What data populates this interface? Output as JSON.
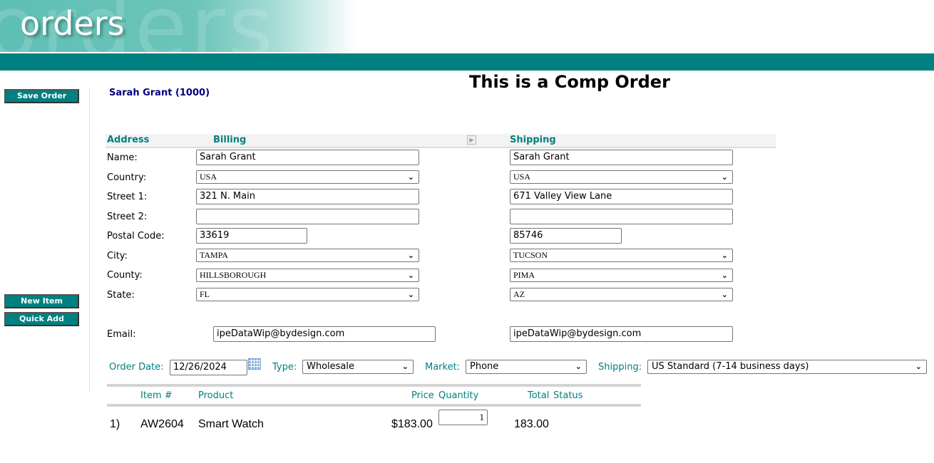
{
  "header": {
    "logo_text": "orders",
    "ghost_text": "orders"
  },
  "sidebar": {
    "save": "Save Order",
    "new_item": "New Item",
    "quick_add": "Quick Add"
  },
  "customer": "Sarah Grant (1000)",
  "page_title": "This is a Comp Order",
  "address": {
    "headers": {
      "address": "Address",
      "billing": "Billing",
      "shipping": "Shipping"
    },
    "labels": {
      "name": "Name:",
      "country": "Country:",
      "street1": "Street 1:",
      "street2": "Street 2:",
      "postal": "Postal Code:",
      "city": "City:",
      "county": "County:",
      "state": "State:",
      "email": "Email:"
    },
    "billing": {
      "name": "Sarah Grant",
      "country": "USA",
      "street1": "321 N. Main",
      "street2": "",
      "postal": "33619",
      "city": "TAMPA",
      "county": "HILLSBOROUGH",
      "state": "FL",
      "email": "ipeDataWip@bydesign.com"
    },
    "shipping": {
      "name": "Sarah Grant",
      "country": "USA",
      "street1": "671 Valley View Lane",
      "street2": "",
      "postal": "85746",
      "city": "TUCSON",
      "county": "PIMA",
      "state": "AZ",
      "email": "ipeDataWip@bydesign.com"
    }
  },
  "order": {
    "date_label": "Order Date:",
    "date": "12/26/2024",
    "type_label": "Type:",
    "type": "Wholesale",
    "market_label": "Market:",
    "market": "Phone",
    "shipping_label": "Shipping:",
    "shipping": "US Standard (7-14 business days)"
  },
  "items": {
    "columns": [
      "Item #",
      "Product",
      "Price",
      "Quantity",
      "Total",
      "Status"
    ],
    "rows": [
      {
        "index": "1)",
        "item": "AW2604",
        "product": "Smart Watch",
        "price": "$183.00",
        "quantity": "1",
        "total": "183.00"
      }
    ]
  }
}
